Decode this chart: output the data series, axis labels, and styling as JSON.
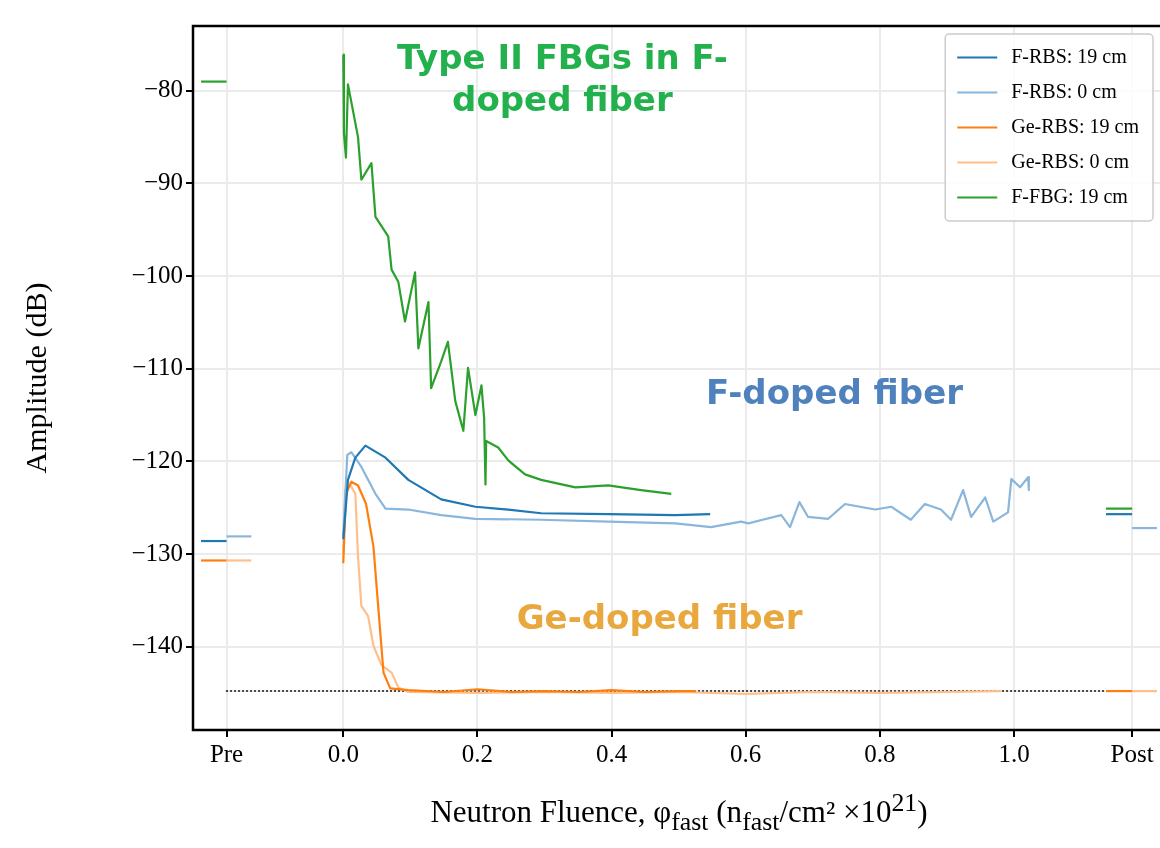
{
  "chart_data": {
    "type": "line",
    "xlabel": "Neutron Fluence, φ$_{fast}$ (n$_{fast}$/cm² ×10$^{21}$)",
    "ylabel": "Amplitude (dB)",
    "xlim": [
      -0.224,
      1.225
    ],
    "ylim": [
      -149,
      -73
    ],
    "xticks": [
      {
        "value": -0.174,
        "label": "Pre"
      },
      {
        "value": 0,
        "label": "0.0"
      },
      {
        "value": 0.2,
        "label": "0.2"
      },
      {
        "value": 0.4,
        "label": "0.4"
      },
      {
        "value": 0.6,
        "label": "0.6"
      },
      {
        "value": 0.8,
        "label": "0.8"
      },
      {
        "value": 1,
        "label": "1.0"
      },
      {
        "value": 1.176,
        "label": "Post"
      }
    ],
    "yticks": [
      -140,
      -130,
      -120,
      -110,
      -100,
      -90,
      -80
    ],
    "grid": true,
    "legend": "top right",
    "marker": "none",
    "annotations": [
      "Type II FBGs in F-doped fiber",
      "F-doped fiber",
      "Ge-doped fiber"
    ],
    "series": [
      {
        "name": "F-RBS: 19 cm",
        "color": "#1f77b4",
        "x": [
          0,
          0.007,
          0.018,
          0.033,
          0.063,
          0.097,
          0.146,
          0.197,
          0.246,
          0.295,
          0.395,
          0.495,
          0.547
        ],
        "values": [
          -128.4,
          -122,
          -119.6,
          -118.3,
          -119.6,
          -122,
          -124.1,
          -124.9,
          -125.2,
          -125.6,
          -125.7,
          -125.8,
          -125.7
        ]
      },
      {
        "name": "F-RBS: 0 cm",
        "color": "#8ab6dc",
        "x": [
          0,
          0.006,
          0.012,
          0.027,
          0.048,
          0.063,
          0.097,
          0.146,
          0.197,
          0.295,
          0.395,
          0.495,
          0.548,
          0.593,
          0.604,
          0.653,
          0.666,
          0.68,
          0.693,
          0.723,
          0.748,
          0.793,
          0.817,
          0.846,
          0.867,
          0.891,
          0.906,
          0.924,
          0.936,
          0.957,
          0.969,
          0.991,
          0.996,
          1.009,
          1.021,
          1.022
        ],
        "values": [
          -128,
          -119.3,
          -119,
          -120.6,
          -123.5,
          -125.1,
          -125.2,
          -125.8,
          -126.2,
          -126.3,
          -126.5,
          -126.7,
          -127.1,
          -126.5,
          -126.7,
          -125.8,
          -127.1,
          -124.4,
          -126,
          -126.2,
          -124.6,
          -125.2,
          -124.9,
          -126.3,
          -124.6,
          -125.2,
          -126.3,
          -123.1,
          -126,
          -123.9,
          -126.5,
          -125.5,
          -121.9,
          -122.8,
          -121.7,
          -123.1
        ]
      },
      {
        "name": "Ge-RBS: 19 cm",
        "color": "#ff7f0e",
        "x": [
          0,
          0.004,
          0.012,
          0.022,
          0.034,
          0.045,
          0.052,
          0.06,
          0.07,
          0.097,
          0.15,
          0.2,
          0.25,
          0.3,
          0.35,
          0.4,
          0.45,
          0.5,
          0.526
        ],
        "values": [
          -131,
          -123.5,
          -122.2,
          -122.6,
          -124.6,
          -129.2,
          -135.6,
          -142.8,
          -144.5,
          -144.7,
          -144.9,
          -144.6,
          -144.9,
          -144.8,
          -144.9,
          -144.7,
          -144.9,
          -144.8,
          -144.8
        ]
      },
      {
        "name": "Ge-RBS: 0 cm",
        "color": "#ffbf8a",
        "x": [
          0,
          0.003,
          0.01,
          0.018,
          0.022,
          0.027,
          0.037,
          0.045,
          0.057,
          0.072,
          0.082,
          0.097,
          0.2,
          0.3,
          0.4,
          0.5,
          0.6,
          0.7,
          0.8,
          0.9,
          0.981
        ],
        "values": [
          -130,
          -123.1,
          -122.5,
          -123.5,
          -130.3,
          -135.6,
          -136.7,
          -139.9,
          -142,
          -142.8,
          -144.4,
          -144.9,
          -145,
          -144.9,
          -145,
          -144.9,
          -145.1,
          -144.9,
          -145,
          -144.9,
          -144.8
        ]
      },
      {
        "name": "F-FBG: 19 cm",
        "color": "#2ca02c",
        "x": [
          0,
          0.001,
          0.004,
          0.007,
          0.022,
          0.027,
          0.042,
          0.048,
          0.067,
          0.072,
          0.082,
          0.092,
          0.107,
          0.112,
          0.127,
          0.131,
          0.146,
          0.156,
          0.167,
          0.179,
          0.186,
          0.197,
          0.206,
          0.21,
          0.212,
          0.213,
          0.231,
          0.246,
          0.271,
          0.295,
          0.346,
          0.395,
          0.444,
          0.489
        ],
        "values": [
          -76.1,
          -84.6,
          -87.2,
          -79.3,
          -85,
          -89.6,
          -87.8,
          -93.6,
          -95.7,
          -99.3,
          -100.6,
          -104.9,
          -99.6,
          -107.8,
          -102.8,
          -112.1,
          -109.2,
          -107.1,
          -113.5,
          -116.7,
          -109.9,
          -115,
          -111.8,
          -115.3,
          -122.5,
          -117.8,
          -118.5,
          -119.9,
          -121.4,
          -122,
          -122.8,
          -122.6,
          -123.1,
          -123.5
        ]
      },
      {
        "color": "#1f77b4",
        "x": [
          -0.212,
          -0.174
        ],
        "values": [
          -128.6,
          -128.6
        ]
      },
      {
        "color": "#8ab6dc",
        "x": [
          -0.174,
          -0.137
        ],
        "values": [
          -128.1,
          -128.1
        ]
      },
      {
        "color": "#ff7f0e",
        "x": [
          -0.212,
          -0.174
        ],
        "values": [
          -130.7,
          -130.7
        ]
      },
      {
        "color": "#ffbf8a",
        "x": [
          -0.174,
          -0.137
        ],
        "values": [
          -130.7,
          -130.7
        ]
      },
      {
        "color": "#2ca02c",
        "x": [
          -0.212,
          -0.174
        ],
        "values": [
          -79,
          -79
        ]
      },
      {
        "color": "#2ca02c",
        "x": [
          1.137,
          1.176
        ],
        "values": [
          -125.1,
          -125.1
        ]
      },
      {
        "color": "#1f77b4",
        "x": [
          1.137,
          1.176
        ],
        "values": [
          -125.7,
          -125.7
        ]
      },
      {
        "color": "#8ab6dc",
        "x": [
          1.176,
          1.213
        ],
        "values": [
          -127.2,
          -127.2
        ]
      },
      {
        "color": "#ffbf8a",
        "x": [
          1.176,
          1.213
        ],
        "values": [
          -144.8,
          -144.8
        ]
      },
      {
        "color": "#ff7f0e",
        "x": [
          1.137,
          1.176
        ],
        "values": [
          -144.8,
          -144.8
        ]
      },
      {
        "color": "#000000",
        "line_style": "dotted",
        "x": [
          -0.174,
          1.137
        ],
        "values": [
          -144.8,
          -144.8
        ]
      }
    ]
  }
}
